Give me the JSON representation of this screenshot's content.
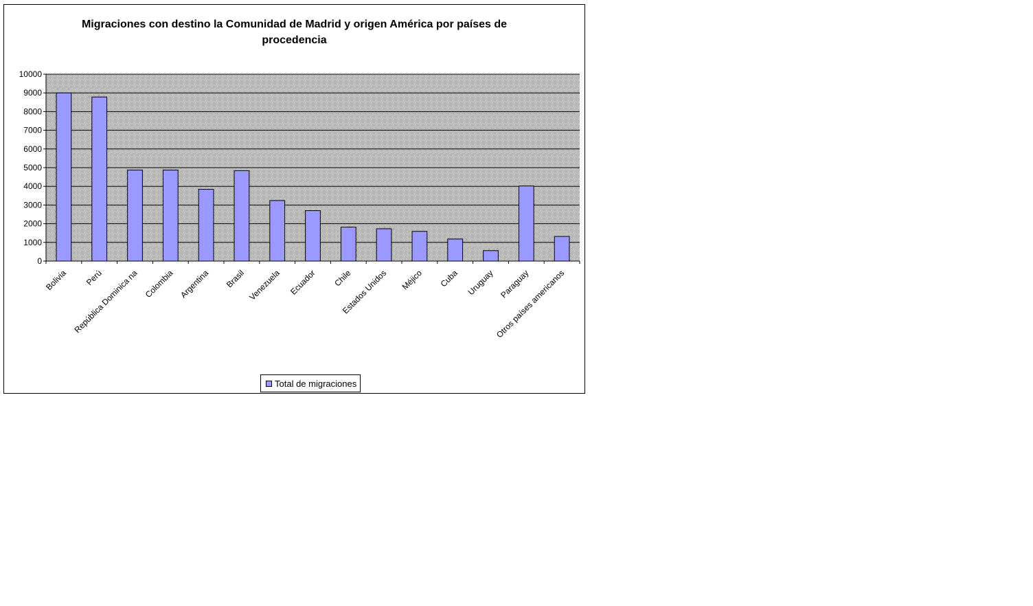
{
  "chart_data": {
    "type": "bar",
    "title": "Migraciones con destino la Comunidad de Madrid y origen  América  por países de procedencia",
    "categories": [
      "Bolivia",
      "Perú",
      "República Dominica na",
      "Colombia",
      "Argentina",
      "Brasil",
      "Venezuela",
      "Ecuador",
      "Chile",
      "Estados Unidos",
      "Méjico",
      "Cuba",
      "Uruguay",
      "Paraguay",
      "Otros países americanos"
    ],
    "series": [
      {
        "name": "Total de migraciones",
        "values": [
          9000,
          8780,
          4870,
          4870,
          3840,
          4840,
          3240,
          2700,
          1820,
          1730,
          1590,
          1180,
          560,
          4020,
          1320
        ]
      }
    ],
    "ylim": [
      0,
      10000
    ],
    "yticks": [
      0,
      1000,
      2000,
      3000,
      4000,
      5000,
      6000,
      7000,
      8000,
      9000,
      10000
    ],
    "grid": true,
    "legend_position": "bottom",
    "colors": {
      "bar": "#9999ff",
      "plot_bg": "#c0c0c0",
      "grid": "#000000"
    }
  }
}
